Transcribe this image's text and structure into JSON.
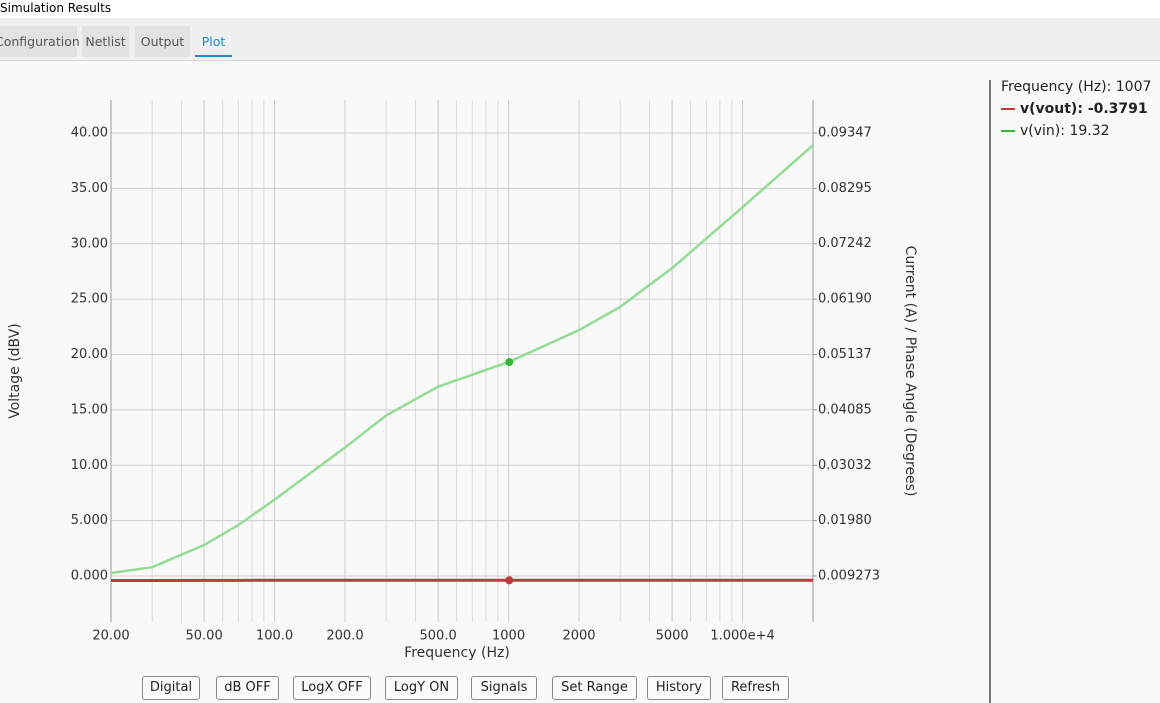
{
  "window": {
    "title": "Simulation Results"
  },
  "tabs": [
    "Configuration",
    "Netlist",
    "Output",
    "Plot"
  ],
  "chart_data": {
    "type": "line",
    "x_label": "Frequency (Hz)",
    "y_label": "Voltage (dBV)",
    "y2_label": "Current (A) / Phase Angle (Degrees)",
    "x": [
      20,
      30,
      50,
      70,
      100,
      200,
      300,
      500,
      1000,
      2000,
      3000,
      5000,
      10000,
      20000
    ],
    "series": [
      {
        "color": "#c0383a",
        "values": [
          -0.4,
          -0.4,
          -0.39,
          -0.39,
          -0.38,
          -0.38,
          -0.38,
          -0.38,
          -0.38,
          -0.38,
          -0.38,
          -0.38,
          -0.38,
          -0.38
        ]
      },
      {
        "color": "#94dc94",
        "values": [
          0.27,
          0.8,
          2.8,
          4.6,
          6.9,
          11.6,
          14.5,
          17.1,
          19.32,
          22.2,
          24.3,
          27.8,
          33.3,
          38.9
        ]
      }
    ],
    "xscale": "log",
    "grid": true,
    "xlim": [
      20,
      20000
    ],
    "xticks": [
      {
        "value": 20,
        "label": "20.00"
      },
      {
        "value": 50,
        "label": "50.00"
      },
      {
        "value": 100,
        "label": "100.0"
      },
      {
        "value": 200,
        "label": "200.0"
      },
      {
        "value": 500,
        "label": "500.0"
      },
      1000,
      2000,
      5000,
      {
        "value": 10000,
        "label": "1.000e+4"
      }
    ],
    "ylim": [
      -4.15,
      42.98
    ],
    "yticks": [
      {
        "value": 0,
        "label": "0.000"
      },
      {
        "value": 5,
        "label": "5.000"
      },
      {
        "value": 10,
        "label": "10.00"
      },
      {
        "value": 15,
        "label": "15.00"
      },
      {
        "value": 20,
        "label": "20.00"
      },
      {
        "value": 25,
        "label": "25.00"
      },
      {
        "value": 30,
        "label": "30.00"
      },
      {
        "value": 35,
        "label": "35.00"
      },
      {
        "value": 40,
        "label": "40.00"
      }
    ],
    "y2lim": [
      0.00053,
      0.09974
    ],
    "y2ticks": [
      0.009273,
      {
        "value": 0.0198,
        "label": "0.01980"
      },
      0.03032,
      0.04085,
      0.05137,
      {
        "value": 0.0619,
        "label": "0.06190"
      },
      0.07242,
      0.08295,
      0.09347
    ]
  },
  "readout": {
    "label": "Frequency (Hz):",
    "x": 1007,
    "items": [
      {
        "label": "v(vout):",
        "value": -0.3791,
        "marker": "#c0383a"
      },
      {
        "label": "v(vin):",
        "value": 19.32,
        "marker": "#33b833"
      }
    ]
  },
  "buttons": [
    "Digital",
    "dB OFF",
    "LogX OFF",
    "LogY ON",
    "Signals",
    "Set Range",
    "History",
    "Refresh"
  ]
}
